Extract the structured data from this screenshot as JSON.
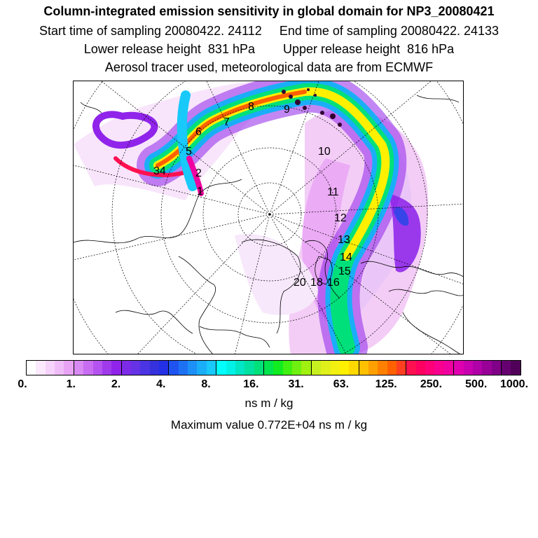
{
  "header": {
    "title": "Column-integrated emission sensitivity in global domain for NP3_20080421",
    "sampling": "Start time of sampling 20080422. 24112     End time of sampling 20080422. 24133",
    "release": "Lower release height  831 hPa        Upper release height  816 hPa",
    "note": "Aerosol tracer used, meteorological data are from ECMWF"
  },
  "map": {
    "trajectory_labels": [
      "1",
      "2",
      "34",
      "5",
      "6",
      "7",
      "8",
      "9",
      "10",
      "11",
      "12",
      "13",
      "14",
      "15",
      "16",
      "18",
      "20"
    ]
  },
  "colorbar": {
    "ticks": [
      "0.",
      "1.",
      "2.",
      "4.",
      "8.",
      "16.",
      "31.",
      "63.",
      "125.",
      "250.",
      "500.",
      "1000."
    ],
    "colors": [
      "#ffffff",
      "#fbe9fd",
      "#f6d3fb",
      "#efbcf8",
      "#e9a3f5",
      "#d88af3",
      "#c86df2",
      "#b553f0",
      "#a03bec",
      "#9024ea",
      "#7c2ce8",
      "#6632e6",
      "#4b34e4",
      "#3431dd",
      "#2430e6",
      "#1f53f0",
      "#1d72f4",
      "#1c90f6",
      "#1aaef8",
      "#18c9fa",
      "#00ffff",
      "#00f2e6",
      "#00e5c4",
      "#00e0a0",
      "#00e07a",
      "#00e44e",
      "#10ec20",
      "#40f010",
      "#70f010",
      "#a0f010",
      "#c8f020",
      "#e0f01a",
      "#f2f010",
      "#fff000",
      "#ffd800",
      "#ffc000",
      "#ffa000",
      "#ff8000",
      "#ff6000",
      "#ff4020",
      "#ff1050",
      "#ff0060",
      "#ff0078",
      "#f80090",
      "#f000a0",
      "#e000b0",
      "#c800b0",
      "#b000a8",
      "#980098",
      "#800088",
      "#660070",
      "#500058"
    ],
    "major_every": 5,
    "unit": "ns m / kg"
  },
  "footer": {
    "maximum": "Maximum value  0.772E+04 ns m / kg"
  }
}
